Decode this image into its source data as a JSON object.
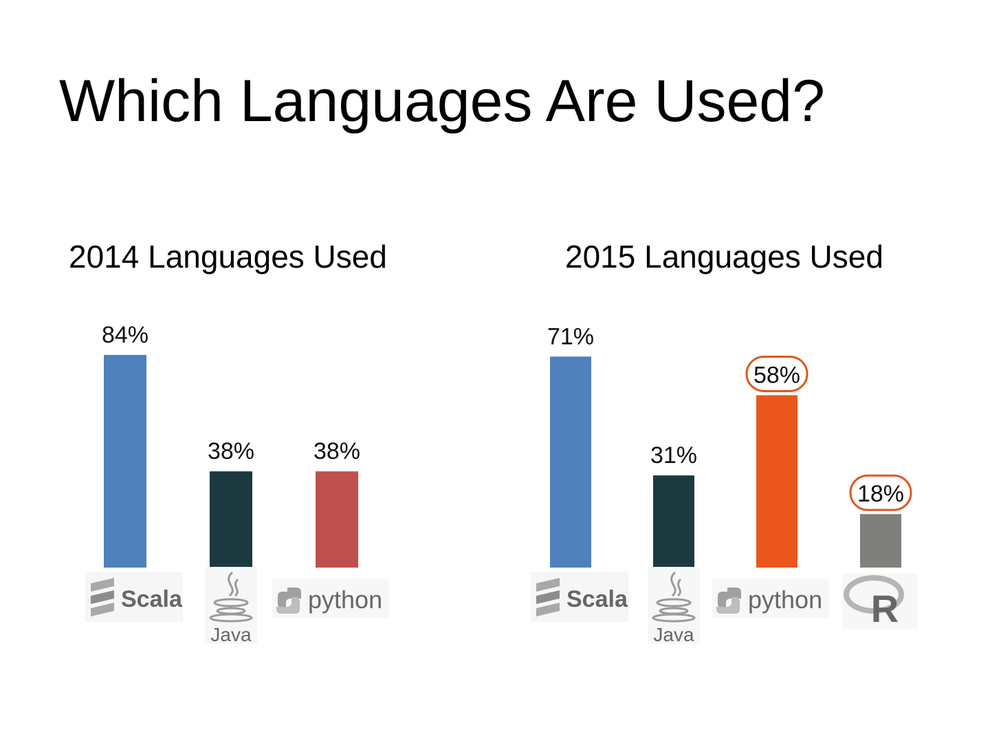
{
  "slide": {
    "title": "Which Languages Are Used?"
  },
  "chart_data": [
    {
      "type": "bar",
      "title": "2014 Languages Used",
      "categories": [
        "Scala",
        "Java",
        "python"
      ],
      "values": [
        84,
        38,
        38
      ],
      "value_labels": [
        "84%",
        "38%",
        "38%"
      ],
      "colors": [
        "#4F81BD",
        "#1B3A40",
        "#C0504D"
      ],
      "highlighted": [
        false,
        false,
        false
      ],
      "ylim": [
        0,
        100
      ],
      "legend": "none",
      "grid": false
    },
    {
      "type": "bar",
      "title": "2015 Languages Used",
      "categories": [
        "Scala",
        "Java",
        "python",
        "R"
      ],
      "values": [
        71,
        31,
        58,
        18
      ],
      "value_labels": [
        "71%",
        "31%",
        "58%",
        "18%"
      ],
      "colors": [
        "#4F81BD",
        "#1B3A40",
        "#EA561E",
        "#7F807B"
      ],
      "highlighted": [
        false,
        false,
        true,
        true
      ],
      "highlight_color": "#E0561E",
      "ylim": [
        0,
        100
      ],
      "legend": "none",
      "grid": false
    }
  ]
}
